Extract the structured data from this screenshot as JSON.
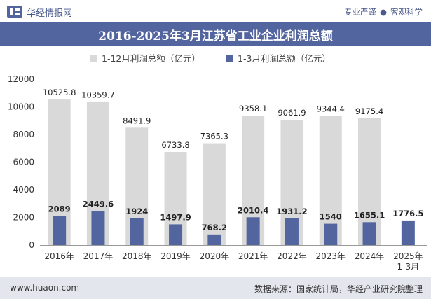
{
  "header": {
    "brand": "华经情报网",
    "tagline_left": "专业严谨",
    "tagline_right": "客观科学"
  },
  "title": "2016-2025年3月江苏省工业企业利润总额",
  "footer": {
    "url": "www.huaon.com",
    "source": "数据来源：国家统计局，华经产业研究院整理"
  },
  "colors": {
    "title_bar": "#53659e",
    "annual_bar": "#d9d9d9",
    "q1_bar": "#53659e",
    "footer_bg": "#e4e6ed"
  },
  "chart_data": {
    "type": "bar",
    "title": "2016-2025年3月江苏省工业企业利润总额",
    "categories": [
      "2016年",
      "2017年",
      "2018年",
      "2019年",
      "2020年",
      "2021年",
      "2022年",
      "2023年",
      "2024年",
      "2025年\n1-3月"
    ],
    "series": [
      {
        "name": "1-12月利润总额（亿元）",
        "values": [
          10525.8,
          10359.7,
          8491.9,
          6733.8,
          7365.3,
          9358.1,
          9061.9,
          9344.4,
          9175.4,
          null
        ]
      },
      {
        "name": "1-3月利润总额（亿元）",
        "values": [
          2089,
          2449.6,
          1924,
          1497.9,
          768.2,
          2010.4,
          1931.2,
          1540,
          1655.1,
          1776.5
        ]
      }
    ],
    "ylim": [
      0,
      12000
    ],
    "yticks": [
      0,
      2000,
      4000,
      6000,
      8000,
      10000,
      12000
    ],
    "xlabel": "",
    "ylabel": "",
    "grid": false,
    "legend": "top-center",
    "stacking": "overlay"
  }
}
